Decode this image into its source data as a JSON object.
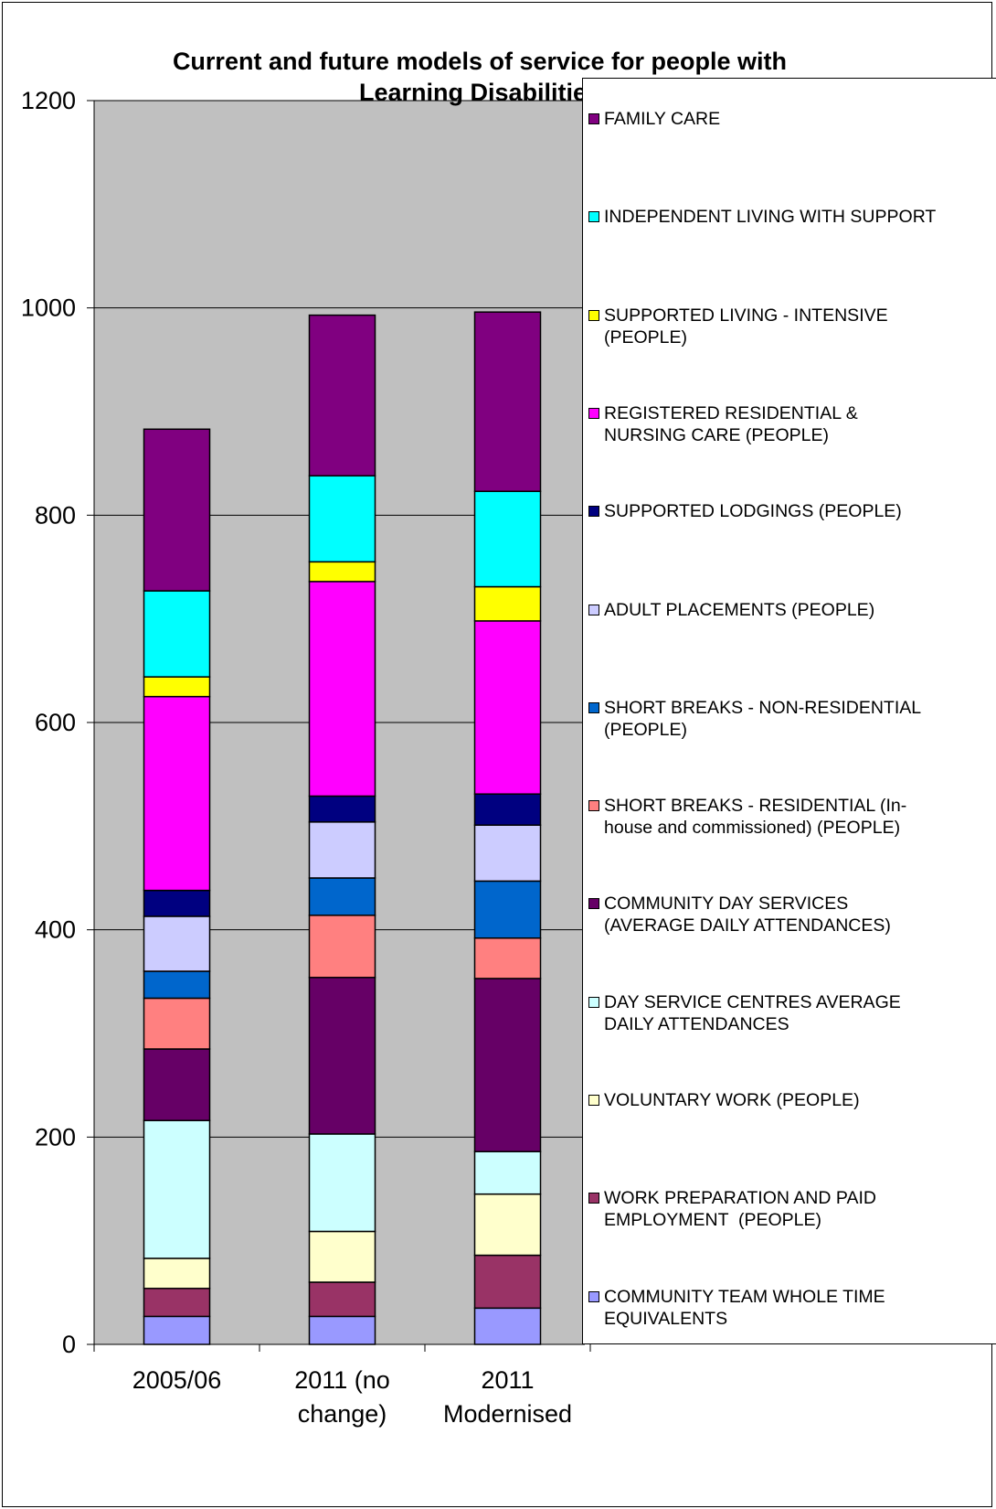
{
  "chart_data": {
    "type": "bar",
    "stacked": true,
    "title": "Current and future models of service for people with Learning Disabilities",
    "categories": [
      "2005/06",
      "2011 (no change)",
      "2011 Modernised"
    ],
    "ylim": [
      0,
      1200
    ],
    "yticks": [
      "0",
      "200",
      "400",
      "600",
      "800",
      "1000",
      "1200"
    ],
    "grid": true,
    "legend_position": "right",
    "series": [
      {
        "name": "COMMUNITY TEAM WHOLE TIME EQUIVALENTS",
        "color": "#9999ff",
        "values": [
          27,
          27,
          35
        ]
      },
      {
        "name": "WORK PREPARATION AND PAID EMPLOYMENT  (PEOPLE)",
        "color": "#993366",
        "values": [
          27,
          33,
          51
        ]
      },
      {
        "name": "VOLUNTARY WORK (PEOPLE)",
        "color": "#ffffcc",
        "values": [
          29,
          49,
          59
        ]
      },
      {
        "name": "DAY SERVICE CENTRES AVERAGE DAILY ATTENDANCES",
        "color": "#ccffff",
        "values": [
          133,
          94,
          41
        ]
      },
      {
        "name": "COMMUNITY DAY SERVICES (AVERAGE DAILY ATTENDANCES)",
        "color": "#660066",
        "values": [
          69,
          151,
          167
        ]
      },
      {
        "name": "SHORT BREAKS - RESIDENTIAL (In-house and commissioned) (PEOPLE)",
        "color": "#ff8080",
        "values": [
          49,
          60,
          39
        ]
      },
      {
        "name": "SHORT BREAKS - NON-RESIDENTIAL (PEOPLE)",
        "color": "#0066cc",
        "values": [
          26,
          36,
          55
        ]
      },
      {
        "name": "ADULT PLACEMENTS (PEOPLE)",
        "color": "#ccccff",
        "values": [
          53,
          54,
          54
        ]
      },
      {
        "name": "SUPPORTED LODGINGS (PEOPLE)",
        "color": "#000080",
        "values": [
          25,
          25,
          30
        ]
      },
      {
        "name": "REGISTERED RESIDENTIAL & NURSING CARE (PEOPLE)",
        "color": "#ff00ff",
        "values": [
          187,
          207,
          167
        ]
      },
      {
        "name": "SUPPORTED LIVING - INTENSIVE (PEOPLE)",
        "color": "#ffff00",
        "values": [
          19,
          19,
          33
        ]
      },
      {
        "name": "INDEPENDENT LIVING WITH SUPPORT",
        "color": "#00ffff",
        "values": [
          83,
          83,
          92
        ]
      },
      {
        "name": "FAMILY CARE",
        "color": "#800080",
        "values": [
          156,
          155,
          173
        ]
      }
    ]
  },
  "legend": {
    "items": [
      {
        "label": "FAMILY CARE",
        "color": "#800080"
      },
      {
        "label": "INDEPENDENT LIVING WITH SUPPORT",
        "color": "#00ffff"
      },
      {
        "label": "SUPPORTED LIVING - INTENSIVE\n(PEOPLE)",
        "color": "#ffff00"
      },
      {
        "label": "REGISTERED RESIDENTIAL &\nNURSING CARE (PEOPLE)",
        "color": "#ff00ff"
      },
      {
        "label": "SUPPORTED LODGINGS (PEOPLE)",
        "color": "#000080"
      },
      {
        "label": "ADULT PLACEMENTS (PEOPLE)",
        "color": "#ccccff"
      },
      {
        "label": "SHORT BREAKS - NON-RESIDENTIAL\n(PEOPLE)",
        "color": "#0066cc"
      },
      {
        "label": "SHORT BREAKS - RESIDENTIAL (In-\nhouse and commissioned) (PEOPLE)",
        "color": "#ff8080"
      },
      {
        "label": "COMMUNITY DAY SERVICES\n(AVERAGE DAILY ATTENDANCES)",
        "color": "#660066"
      },
      {
        "label": "DAY SERVICE CENTRES AVERAGE\nDAILY ATTENDANCES",
        "color": "#ccffff"
      },
      {
        "label": "VOLUNTARY WORK (PEOPLE)",
        "color": "#ffffcc"
      },
      {
        "label": "WORK PREPARATION AND PAID\nEMPLOYMENT  (PEOPLE)",
        "color": "#993366"
      },
      {
        "label": "COMMUNITY TEAM WHOLE TIME\nEQUIVALENTS",
        "color": "#9999ff"
      }
    ]
  },
  "title_lines": [
    "Current and future models of service for people with",
    "Learning Disabilities"
  ],
  "category_lines": [
    [
      "2005/06"
    ],
    [
      "2011 (no",
      "change)"
    ],
    [
      "2011",
      "Modernised"
    ]
  ],
  "colors": {
    "plot_background": "#c0c0c0",
    "gridline": "#000000",
    "bar_border": "#000000"
  }
}
